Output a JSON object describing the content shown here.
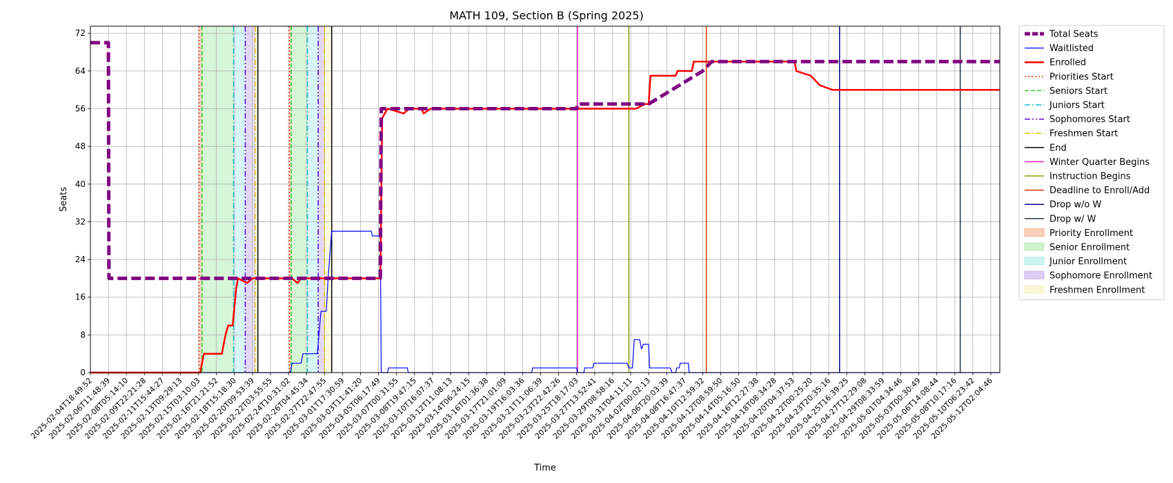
{
  "chart_data": {
    "type": "line",
    "title": "MATH 109, Section B (Spring 2025)",
    "xlabel": "Time",
    "ylabel": "Seats",
    "xlim": [
      "2025-02-04T18:49:52",
      "2025-05-13T02:04:46"
    ],
    "ylim": [
      0,
      73.5
    ],
    "yticks": [
      0,
      8,
      16,
      24,
      32,
      40,
      48,
      56,
      64,
      72
    ],
    "grid": true,
    "legend_position": "outside-right",
    "xtick_labels": [
      "2025-02-04T18:49:52",
      "2025-02-06T11:48:39",
      "2025-02-08T05:14:10",
      "2025-02-09T22:21:28",
      "2025-02-11T15:44:27",
      "2025-02-13T09:29:13",
      "2025-02-15T03:10:03",
      "2025-02-16T21:21:52",
      "2025-02-18T15:18:30",
      "2025-02-20T09:53:39",
      "2025-02-22T03:55:55",
      "2025-02-24T10:31:02",
      "2025-02-26T04:45:34",
      "2025-02-27T22:47:55",
      "2025-03-01T17:30:59",
      "2025-03-03T11:41:20",
      "2025-03-05T06:17:49",
      "2025-03-07T00:31:55",
      "2025-03-08T19:47:15",
      "2025-03-10T16:07:37",
      "2025-03-12T11:08:13",
      "2025-03-14T06:24:15",
      "2025-03-16T01:36:38",
      "2025-03-17T21:01:09",
      "2025-03-19T16:03:36",
      "2025-03-21T11:06:39",
      "2025-03-23T22:42:26",
      "2025-03-25T18:17:03",
      "2025-03-27T13:52:41",
      "2025-03-29T08:58:16",
      "2025-03-31T04:11:11",
      "2025-04-02T00:02:13",
      "2025-04-06T20:03:39",
      "2025-04-08T16:47:37",
      "2025-04-10T12:59:32",
      "2025-04-12T08:59:50",
      "2025-04-14T05:16:50",
      "2025-04-16T12:27:38",
      "2025-04-18T08:34:28",
      "2025-04-20T04:37:53",
      "2025-04-22T00:25:20",
      "2025-04-23T20:35:16",
      "2025-04-25T16:39:25",
      "2025-04-27T12:29:08",
      "2025-04-29T08:33:59",
      "2025-05-01T04:34:46",
      "2025-05-03T00:30:49",
      "2025-05-06T14:08:44",
      "2025-05-08T10:17:16",
      "2025-05-10T06:23:42",
      "2025-05-12T02:04:46"
    ],
    "series": [
      {
        "name": "Total Seats",
        "color": "#800080",
        "style": "dashed-thick",
        "points": [
          [
            0,
            70
          ],
          [
            1,
            70
          ],
          [
            1.03,
            20
          ],
          [
            16.1,
            20
          ],
          [
            16.15,
            56
          ],
          [
            27,
            56
          ],
          [
            27.05,
            57
          ],
          [
            30.6,
            57
          ],
          [
            31,
            57
          ],
          [
            34,
            64
          ],
          [
            34.5,
            66
          ],
          [
            50.5,
            66
          ]
        ]
      },
      {
        "name": "Waitlisted",
        "color": "#0000ff",
        "style": "solid-thin",
        "points": [
          [
            0,
            0
          ],
          [
            11.1,
            0
          ],
          [
            11.2,
            2
          ],
          [
            11.7,
            2
          ],
          [
            11.8,
            4
          ],
          [
            12.6,
            4
          ],
          [
            12.8,
            13
          ],
          [
            13.1,
            13
          ],
          [
            13.2,
            20
          ],
          [
            13.4,
            30
          ],
          [
            15.6,
            30
          ],
          [
            15.65,
            29
          ],
          [
            16.1,
            29
          ],
          [
            16.15,
            0
          ],
          [
            16.5,
            0
          ],
          [
            16.55,
            1
          ],
          [
            17.6,
            1
          ],
          [
            17.65,
            0
          ],
          [
            24.5,
            0
          ],
          [
            24.55,
            1
          ],
          [
            27,
            1
          ],
          [
            27.05,
            0
          ],
          [
            27.4,
            0
          ],
          [
            27.45,
            1
          ],
          [
            27.9,
            1
          ],
          [
            27.95,
            2
          ],
          [
            29.8,
            2
          ],
          [
            29.9,
            1
          ],
          [
            30.1,
            1
          ],
          [
            30.2,
            7
          ],
          [
            30.5,
            7
          ],
          [
            30.6,
            5
          ],
          [
            30.7,
            6
          ],
          [
            31,
            6
          ],
          [
            31.05,
            1
          ],
          [
            32.2,
            1
          ],
          [
            32.3,
            0
          ],
          [
            32.5,
            0
          ],
          [
            32.55,
            1
          ],
          [
            32.7,
            1
          ],
          [
            32.75,
            2
          ],
          [
            33.2,
            2
          ],
          [
            33.25,
            0
          ],
          [
            50.5,
            0
          ]
        ]
      },
      {
        "name": "Enrolled",
        "color": "#ff0000",
        "style": "solid-thick",
        "points": [
          [
            0,
            0
          ],
          [
            6.1,
            0
          ],
          [
            6.3,
            4
          ],
          [
            7.3,
            4
          ],
          [
            7.5,
            8
          ],
          [
            7.65,
            10
          ],
          [
            7.9,
            10
          ],
          [
            8.1,
            18
          ],
          [
            8.2,
            20
          ],
          [
            8.7,
            19
          ],
          [
            9,
            20
          ],
          [
            11.2,
            20
          ],
          [
            11.5,
            19
          ],
          [
            11.7,
            20
          ],
          [
            16.1,
            20
          ],
          [
            16.2,
            54
          ],
          [
            16.5,
            56
          ],
          [
            17.4,
            55
          ],
          [
            17.7,
            56
          ],
          [
            18.4,
            56
          ],
          [
            18.5,
            55
          ],
          [
            18.9,
            56
          ],
          [
            30.3,
            56
          ],
          [
            30.8,
            57
          ],
          [
            31,
            57
          ],
          [
            31.1,
            63
          ],
          [
            32.5,
            63
          ],
          [
            32.6,
            64
          ],
          [
            33.4,
            64
          ],
          [
            33.5,
            66
          ],
          [
            39.1,
            66
          ],
          [
            39.2,
            64
          ],
          [
            40,
            63
          ],
          [
            40.5,
            61
          ],
          [
            41.2,
            60
          ],
          [
            50.5,
            60
          ]
        ]
      }
    ],
    "event_lines": [
      {
        "name": "Priorities Start",
        "color": "#ff3300",
        "style": "dotted",
        "x": [
          6.05,
          11.05
        ]
      },
      {
        "name": "Seniors Start",
        "color": "#22cc22",
        "style": "dashed",
        "x": [
          6.2,
          11.15
        ]
      },
      {
        "name": "Juniors Start",
        "color": "#17becf",
        "style": "dashdot",
        "x": [
          7.95,
          12.05
        ]
      },
      {
        "name": "Sophomores Start",
        "color": "#5500cc",
        "style": "dashdotdot",
        "x": [
          8.6,
          12.65
        ]
      },
      {
        "name": "Freshmen Start",
        "color": "#e0c000",
        "style": "dashdot",
        "x": [
          9.15,
          13.0
        ]
      },
      {
        "name": "End",
        "color": "#000000",
        "style": "solid",
        "x": [
          9.3,
          13.4
        ]
      },
      {
        "name": "Winter Quarter Begins",
        "color": "#e020c0",
        "style": "solid",
        "x": [
          27.05
        ]
      },
      {
        "name": "Instruction Begins",
        "color": "#88a000",
        "style": "solid",
        "x": [
          29.9
        ]
      },
      {
        "name": "Deadline to Enroll/Add",
        "color": "#dd3300",
        "style": "solid",
        "x": [
          34.2
        ]
      },
      {
        "name": "Drop w/o W",
        "color": "#000088",
        "style": "solid",
        "x": [
          41.6
        ]
      },
      {
        "name": "Drop w/ W",
        "color": "#223344",
        "style": "solid",
        "x": [
          48.3
        ]
      }
    ],
    "enrollment_periods": [
      {
        "name": "Priority Enrollment",
        "color": "#f4a582",
        "ranges": [
          [
            6.05,
            6.2
          ],
          [
            11.05,
            11.15
          ]
        ]
      },
      {
        "name": "Senior Enrollment",
        "color": "#a6e8a6",
        "ranges": [
          [
            6.2,
            7.95
          ],
          [
            11.15,
            12.05
          ]
        ]
      },
      {
        "name": "Junior Enrollment",
        "color": "#a6e8e8",
        "ranges": [
          [
            7.95,
            8.6
          ],
          [
            12.05,
            12.65
          ]
        ]
      },
      {
        "name": "Sophomore Enrollment",
        "color": "#c2a6ef",
        "ranges": [
          [
            8.6,
            9.15
          ],
          [
            12.65,
            13.0
          ]
        ]
      },
      {
        "name": "Freshmen Enrollment",
        "color": "#f2f2b8",
        "ranges": [
          [
            9.15,
            9.3
          ],
          [
            13.0,
            13.4
          ]
        ]
      }
    ],
    "legend": [
      "Total Seats",
      "Waitlisted",
      "Enrolled",
      "Priorities Start",
      "Seniors Start",
      "Juniors Start",
      "Sophomores Start",
      "Freshmen Start",
      "End",
      "Winter Quarter Begins",
      "Instruction Begins",
      "Deadline to Enroll/Add",
      "Drop w/o W",
      "Drop w/ W",
      "Priority Enrollment",
      "Senior Enrollment",
      "Junior Enrollment",
      "Sophomore Enrollment",
      "Freshmen Enrollment"
    ]
  }
}
